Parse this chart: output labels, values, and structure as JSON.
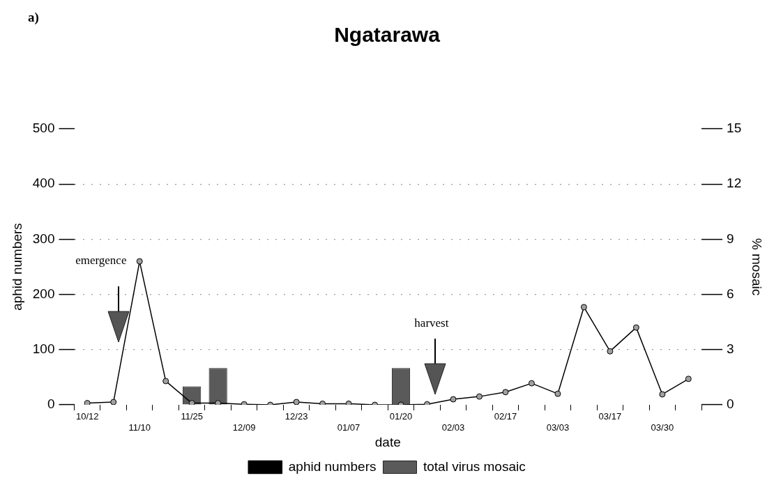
{
  "chart_data": {
    "type": "bar",
    "title": "Ngatarawa",
    "xlabel": "date",
    "ylabel": "aphid numbers",
    "y2label": "% mosaic",
    "annotations": [
      "a)",
      "emergence",
      "harvest"
    ],
    "categories": [
      "10/12",
      null,
      "11/10",
      null,
      "11/25",
      null,
      "12/09",
      null,
      "12/23",
      null,
      "01/07",
      null,
      "01/20",
      null,
      "02/03",
      null,
      "02/17",
      null,
      "03/03",
      null,
      "03/17",
      null,
      "03/30",
      null
    ],
    "series": [
      {
        "name": "aphid numbers",
        "type": "line",
        "color": "#000000",
        "values": [
          3,
          5,
          260,
          43,
          3,
          3,
          1,
          0,
          5,
          2,
          2,
          0,
          0,
          1,
          10,
          15,
          23,
          39,
          20,
          177,
          97,
          140,
          19,
          47
        ]
      },
      {
        "name": "total virus mosaic",
        "axis": "y2",
        "color": "#5a5a5a",
        "values": [
          null,
          null,
          null,
          null,
          1,
          2,
          null,
          null,
          null,
          null,
          null,
          null,
          2,
          null,
          null,
          null,
          null,
          null,
          null,
          null,
          null,
          null,
          null,
          null
        ]
      }
    ],
    "ylim": [
      0,
      500
    ],
    "yticks": [
      0,
      100,
      200,
      300,
      400,
      500
    ],
    "y2lim": [
      0,
      15
    ],
    "y2ticks": [
      0,
      3,
      6,
      9,
      12,
      15
    ],
    "grid": "y",
    "legend": "bottom",
    "marker": "circle",
    "line_style": "solid"
  }
}
